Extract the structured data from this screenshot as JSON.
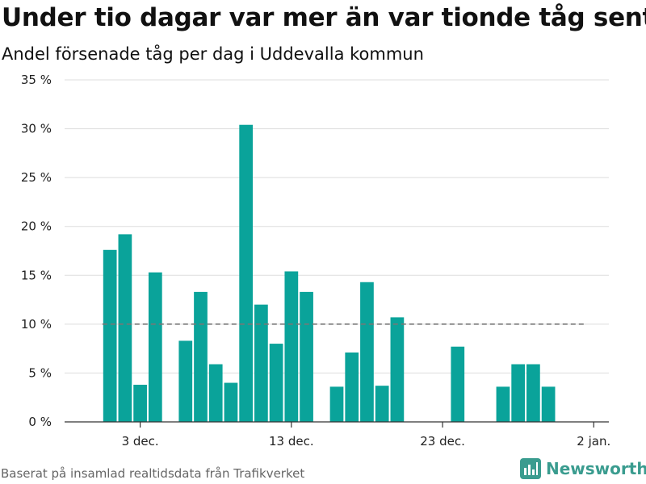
{
  "title": "Under tio dagar var mer än var tionde tåg sent",
  "subtitle": "Andel försenade tåg per dag i Uddevalla kommun",
  "source": "Baserat på insamlad realtidsdata från Trafikverket",
  "brand": "Newsworthy",
  "colors": {
    "bar": "#0aa39a",
    "reference_line": "#777777",
    "grid": "#dddddd",
    "brand": "#3a9c8f"
  },
  "chart_data": {
    "type": "bar",
    "title": "Under tio dagar var mer än var tionde tåg sent",
    "subtitle": "Andel försenade tåg per dag i Uddevalla kommun",
    "xlabel": "",
    "ylabel": "",
    "ylim": [
      0,
      35
    ],
    "y_ticks": [
      {
        "value": 0,
        "label": "0 %"
      },
      {
        "value": 5,
        "label": "5 %"
      },
      {
        "value": 10,
        "label": "10 %"
      },
      {
        "value": 15,
        "label": "15 %"
      },
      {
        "value": 20,
        "label": "20 %"
      },
      {
        "value": 25,
        "label": "25 %"
      },
      {
        "value": 30,
        "label": "30 %"
      },
      {
        "value": 35,
        "label": "35 %"
      }
    ],
    "x_range": [
      "2019-11-28",
      "2020-01-03"
    ],
    "x_ticks": [
      {
        "date": "2019-12-03",
        "label": "3 dec."
      },
      {
        "date": "2019-12-13",
        "label": "13 dec."
      },
      {
        "date": "2019-12-23",
        "label": "23 dec."
      },
      {
        "date": "2020-01-02",
        "label": "2 jan."
      }
    ],
    "reference_line": {
      "value": 10,
      "style": "dashed",
      "from": "2019-12-01",
      "to": "2020-01-01"
    },
    "grid": true,
    "points": [
      {
        "date": "2019-12-01",
        "value": 17.6
      },
      {
        "date": "2019-12-02",
        "value": 19.2
      },
      {
        "date": "2019-12-03",
        "value": 3.8
      },
      {
        "date": "2019-12-04",
        "value": 15.3
      },
      {
        "date": "2019-12-06",
        "value": 8.3
      },
      {
        "date": "2019-12-07",
        "value": 13.3
      },
      {
        "date": "2019-12-08",
        "value": 5.9
      },
      {
        "date": "2019-12-09",
        "value": 4.0
      },
      {
        "date": "2019-12-10",
        "value": 30.4
      },
      {
        "date": "2019-12-11",
        "value": 12.0
      },
      {
        "date": "2019-12-12",
        "value": 8.0
      },
      {
        "date": "2019-12-13",
        "value": 15.4
      },
      {
        "date": "2019-12-14",
        "value": 13.3
      },
      {
        "date": "2019-12-16",
        "value": 3.6
      },
      {
        "date": "2019-12-17",
        "value": 7.1
      },
      {
        "date": "2019-12-18",
        "value": 14.3
      },
      {
        "date": "2019-12-19",
        "value": 3.7
      },
      {
        "date": "2019-12-20",
        "value": 10.7
      },
      {
        "date": "2019-12-24",
        "value": 7.7
      },
      {
        "date": "2019-12-27",
        "value": 3.6
      },
      {
        "date": "2019-12-28",
        "value": 5.9
      },
      {
        "date": "2019-12-29",
        "value": 5.9
      },
      {
        "date": "2019-12-30",
        "value": 3.6
      }
    ]
  }
}
